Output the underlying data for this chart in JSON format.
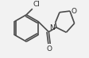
{
  "bg_color": "#f2f2f2",
  "line_color": "#4a4a4a",
  "line_width": 1.2,
  "text_color": "#2a2a2a",
  "label_Cl": "Cl",
  "label_O_carbonyl": "O",
  "label_N": "N",
  "label_O_morpholine": "O",
  "figsize": [
    1.12,
    0.74
  ],
  "dpi": 100
}
